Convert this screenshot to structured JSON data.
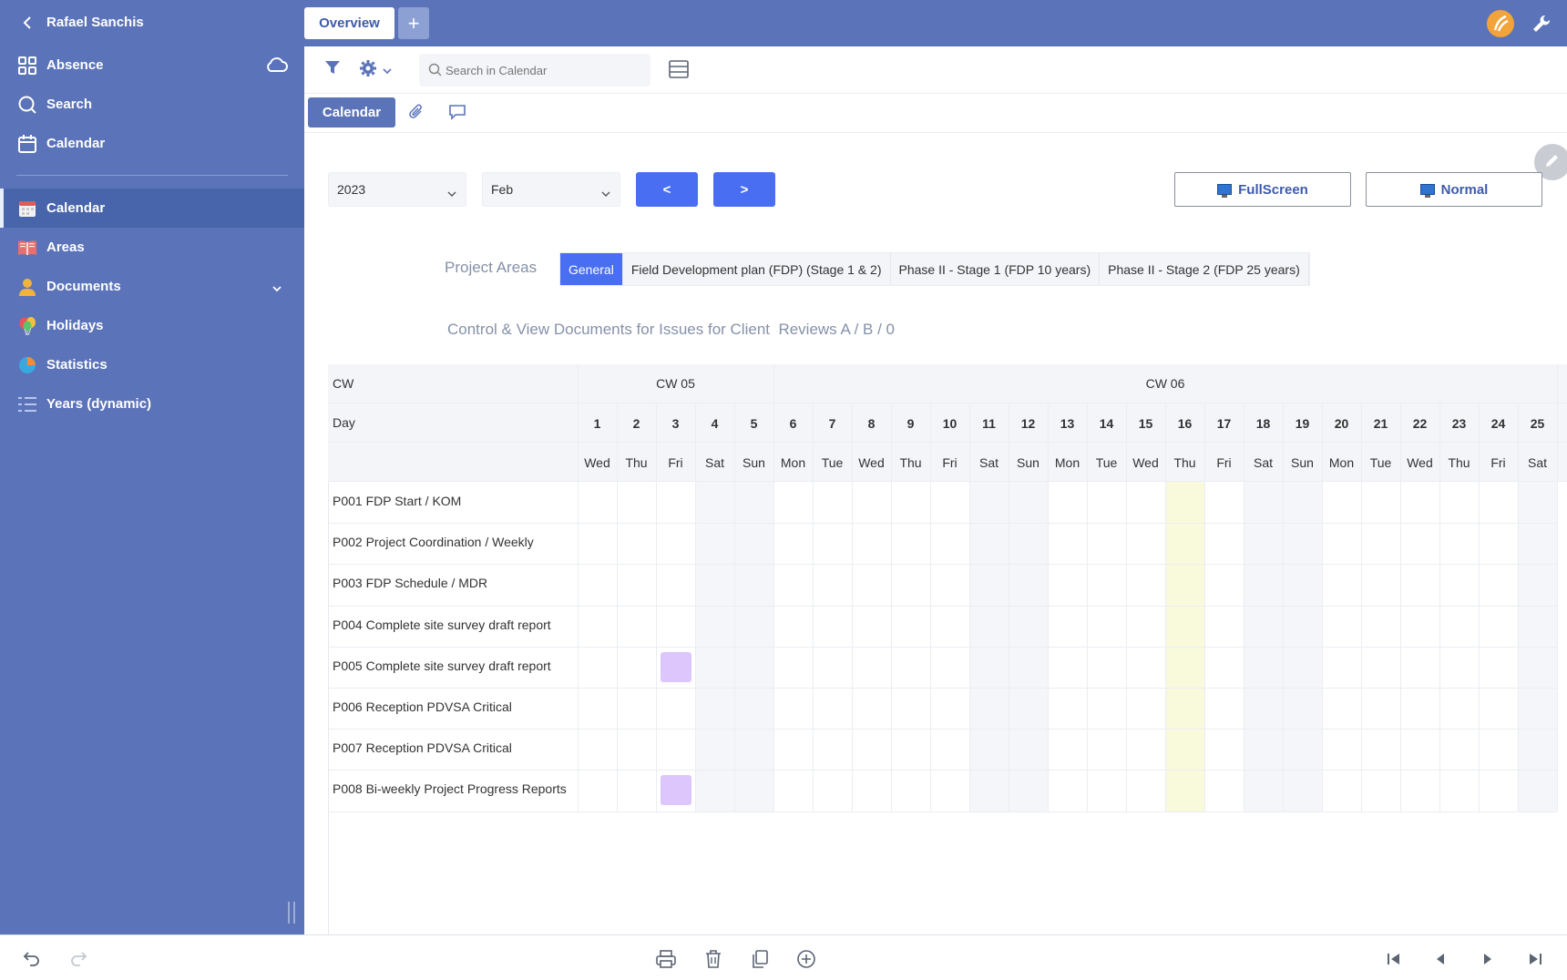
{
  "sidebar": {
    "user_name": "Rafael Sanchis",
    "top_items": [
      {
        "label": "Absence",
        "icon": "grid-icon"
      },
      {
        "label": "Search",
        "icon": "search-icon"
      },
      {
        "label": "Calendar",
        "icon": "calendar-icon"
      }
    ],
    "items": [
      {
        "label": "Calendar",
        "icon": "calendar-color-icon",
        "active": true
      },
      {
        "label": "Areas",
        "icon": "book-icon"
      },
      {
        "label": "Documents",
        "icon": "person-icon",
        "expandable": true
      },
      {
        "label": "Holidays",
        "icon": "balloons-icon"
      },
      {
        "label": "Statistics",
        "icon": "pie-chart-icon"
      },
      {
        "label": "Years (dynamic)",
        "icon": "list-icon"
      }
    ]
  },
  "topbar": {
    "tab_overview": "Overview",
    "tab_add": "+"
  },
  "toolbar": {
    "search_placeholder": "Search in Calendar"
  },
  "subtabs": {
    "calendar": "Calendar"
  },
  "controls": {
    "year": "2023",
    "month": "Feb",
    "prev": "<",
    "next": ">",
    "fullscreen": "FullScreen",
    "normal": "Normal"
  },
  "project_areas": {
    "label": "Project Areas",
    "tabs": [
      {
        "label": "General",
        "active": true
      },
      {
        "label": "Field Development plan (FDP) (Stage 1 & 2)"
      },
      {
        "label": "Phase II - Stage 1 (FDP 10 years)"
      },
      {
        "label": "Phase II - Stage 2 (FDP 25 years)"
      }
    ]
  },
  "subtitle": "Control & View Documents for Issues for Client  Reviews A / B / 0",
  "calendar": {
    "cw_header": "CW",
    "day_header": "Day",
    "weeks": [
      {
        "label": "CW 05",
        "start_day": 1,
        "end_day": 5
      },
      {
        "label": "CW 06",
        "start_day": 6,
        "end_day": 25
      }
    ],
    "days": [
      {
        "num": "1",
        "wd": "Wed"
      },
      {
        "num": "2",
        "wd": "Thu"
      },
      {
        "num": "3",
        "wd": "Fri"
      },
      {
        "num": "4",
        "wd": "Sat",
        "weekend": true
      },
      {
        "num": "5",
        "wd": "Sun",
        "weekend": true
      },
      {
        "num": "6",
        "wd": "Mon"
      },
      {
        "num": "7",
        "wd": "Tue"
      },
      {
        "num": "8",
        "wd": "Wed"
      },
      {
        "num": "9",
        "wd": "Thu"
      },
      {
        "num": "10",
        "wd": "Fri"
      },
      {
        "num": "11",
        "wd": "Sat",
        "weekend": true
      },
      {
        "num": "12",
        "wd": "Sun",
        "weekend": true
      },
      {
        "num": "13",
        "wd": "Mon"
      },
      {
        "num": "14",
        "wd": "Tue"
      },
      {
        "num": "15",
        "wd": "Wed"
      },
      {
        "num": "16",
        "wd": "Thu",
        "today": true
      },
      {
        "num": "17",
        "wd": "Fri"
      },
      {
        "num": "18",
        "wd": "Sat",
        "weekend": true
      },
      {
        "num": "19",
        "wd": "Sun",
        "weekend": true
      },
      {
        "num": "20",
        "wd": "Mon"
      },
      {
        "num": "21",
        "wd": "Tue"
      },
      {
        "num": "22",
        "wd": "Wed"
      },
      {
        "num": "23",
        "wd": "Thu"
      },
      {
        "num": "24",
        "wd": "Fri"
      },
      {
        "num": "25",
        "wd": "Sat",
        "weekend": true
      }
    ],
    "rows": [
      {
        "label": "P001 FDP Start / KOM",
        "events": []
      },
      {
        "label": "P002 Project Coordination / Weekly",
        "events": []
      },
      {
        "label": "P003 FDP Schedule / MDR",
        "events": []
      },
      {
        "label": "P004 Complete site survey draft report",
        "events": []
      },
      {
        "label": "P005 Complete site survey draft report",
        "events": [
          3
        ]
      },
      {
        "label": "P006 Reception PDVSA Critical",
        "events": []
      },
      {
        "label": "P007 Reception PDVSA Critical",
        "events": []
      },
      {
        "label": "P008 Bi-weekly Project Progress Reports",
        "events": [
          3
        ]
      }
    ]
  },
  "colors": {
    "sidebar_bg": "#5b73b8",
    "accent_blue": "#4a6ef2",
    "event_purple": "#dcc6fb",
    "today_yellow": "#f9f9dc"
  }
}
